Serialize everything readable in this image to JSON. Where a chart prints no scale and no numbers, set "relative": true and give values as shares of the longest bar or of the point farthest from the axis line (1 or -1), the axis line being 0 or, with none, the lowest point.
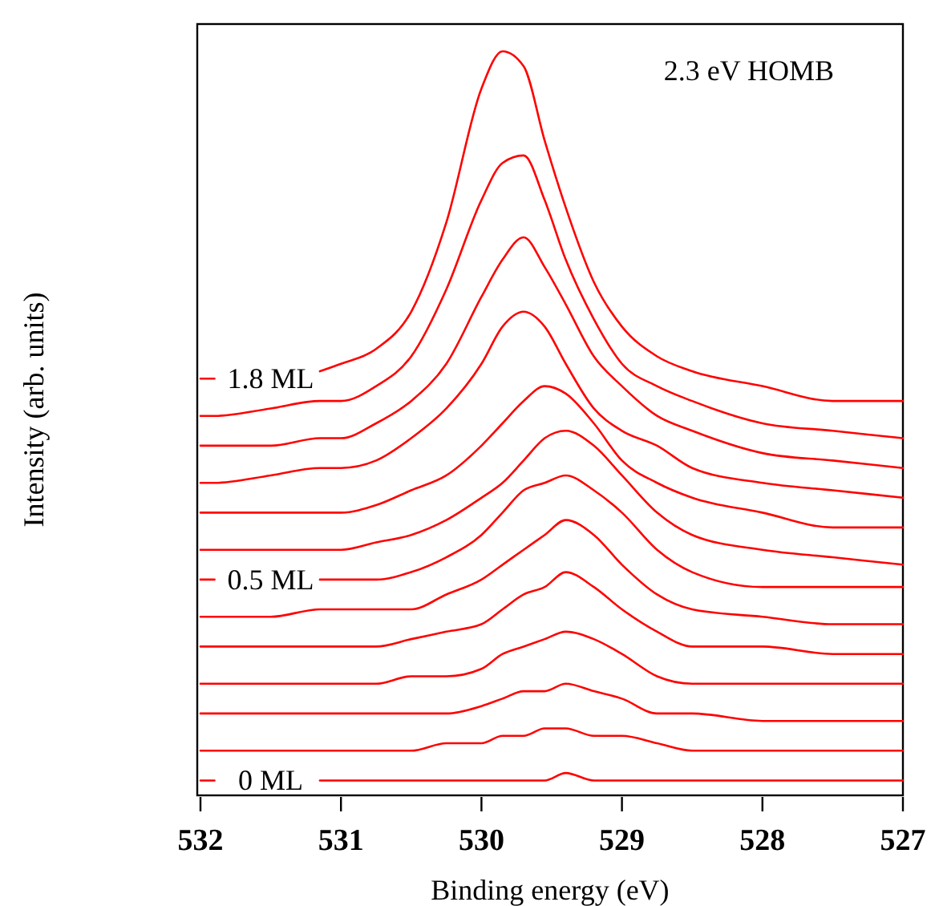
{
  "chart_data": {
    "type": "line",
    "relative": true,
    "xlabel": "Binding energy (eV)",
    "ylabel": "Intensity (arb. units)",
    "annotations": [
      "2.3 eV HOMB"
    ],
    "x": [
      532,
      531.9,
      531.5,
      531.15,
      531,
      530.75,
      530.5,
      530.25,
      530,
      529.85,
      529.7,
      529.55,
      529.4,
      529.2,
      529,
      528.75,
      528.5,
      528,
      527.5,
      527
    ],
    "xlim": [
      532,
      527
    ],
    "xticks": [
      532,
      531,
      530,
      529,
      528,
      527
    ],
    "marker": "none",
    "line_style": "solid",
    "series": [
      {
        "name": "0 ML",
        "color": "#ff0000",
        "values": [
          0.02,
          0.02,
          null,
          0.02,
          0.02,
          0.02,
          0.02,
          0.02,
          0.02,
          0.02,
          0.02,
          0.02,
          0.03,
          0.02,
          0.02,
          0.02,
          0.02,
          0.02,
          0.02,
          0.02
        ]
      },
      {
        "color": "#ff0000",
        "values": [
          0.06,
          0.06,
          0.06,
          0.06,
          0.06,
          0.06,
          0.06,
          0.07,
          0.07,
          0.08,
          0.08,
          0.09,
          0.09,
          0.08,
          0.08,
          0.07,
          0.06,
          0.06,
          0.06,
          0.06
        ]
      },
      {
        "color": "#ff0000",
        "values": [
          0.11,
          0.11,
          0.11,
          0.11,
          0.11,
          0.11,
          0.11,
          0.11,
          0.12,
          0.13,
          0.14,
          0.14,
          0.15,
          0.14,
          0.13,
          0.11,
          0.11,
          0.1,
          0.1,
          0.1
        ]
      },
      {
        "color": "#ff0000",
        "values": [
          0.15,
          0.15,
          0.15,
          0.15,
          0.15,
          0.15,
          0.16,
          0.16,
          0.17,
          0.19,
          0.2,
          0.21,
          0.22,
          0.21,
          0.19,
          0.16,
          0.15,
          0.15,
          0.15,
          0.15
        ]
      },
      {
        "color": "#ff0000",
        "values": [
          0.2,
          0.2,
          0.2,
          0.2,
          0.2,
          0.2,
          0.21,
          0.22,
          0.23,
          0.25,
          0.27,
          0.28,
          0.3,
          0.28,
          0.25,
          0.22,
          0.2,
          0.2,
          0.19,
          0.19
        ]
      },
      {
        "color": "#ff0000",
        "values": [
          0.24,
          0.24,
          0.24,
          0.25,
          0.25,
          0.25,
          0.25,
          0.27,
          0.29,
          0.31,
          0.33,
          0.35,
          0.37,
          0.35,
          0.31,
          0.27,
          0.25,
          0.24,
          0.23,
          0.23
        ]
      },
      {
        "name": "0.5 ML",
        "color": "#ff0000",
        "values": [
          0.29,
          0.29,
          null,
          0.29,
          0.29,
          0.29,
          0.3,
          0.32,
          0.35,
          0.38,
          0.41,
          0.42,
          0.43,
          0.41,
          0.38,
          0.33,
          0.3,
          0.28,
          0.28,
          0.28
        ]
      },
      {
        "color": "#ff0000",
        "values": [
          0.33,
          0.33,
          0.33,
          0.33,
          0.33,
          0.34,
          0.35,
          0.37,
          0.4,
          0.42,
          0.45,
          0.48,
          0.49,
          0.47,
          0.43,
          0.38,
          0.35,
          0.33,
          0.32,
          0.31
        ]
      },
      {
        "color": "#ff0000",
        "values": [
          0.38,
          0.38,
          0.38,
          0.38,
          0.38,
          0.39,
          0.41,
          0.43,
          0.47,
          0.5,
          0.53,
          0.55,
          0.54,
          0.5,
          0.45,
          0.42,
          0.4,
          0.38,
          0.36,
          0.36
        ]
      },
      {
        "color": "#ff0000",
        "values": [
          0.42,
          0.42,
          0.43,
          0.44,
          0.44,
          0.45,
          0.48,
          0.52,
          0.58,
          0.63,
          0.65,
          0.63,
          0.58,
          0.52,
          0.49,
          0.47,
          0.44,
          0.42,
          0.41,
          0.4
        ]
      },
      {
        "color": "#ff0000",
        "values": [
          0.47,
          0.47,
          0.47,
          0.48,
          0.48,
          0.5,
          0.53,
          0.58,
          0.67,
          0.72,
          0.75,
          0.71,
          0.66,
          0.59,
          0.55,
          0.51,
          0.49,
          0.46,
          0.45,
          0.44
        ]
      },
      {
        "color": "#ff0000",
        "values": [
          0.51,
          0.51,
          0.52,
          0.53,
          0.53,
          0.55,
          0.59,
          0.68,
          0.8,
          0.85,
          0.86,
          0.8,
          0.72,
          0.64,
          0.58,
          0.55,
          0.53,
          0.5,
          0.49,
          0.48
        ]
      },
      {
        "name": "1.8 ML",
        "color": "#ff0000",
        "values": [
          0.56,
          0.56,
          null,
          0.57,
          0.58,
          0.6,
          0.65,
          0.77,
          0.95,
          1,
          0.98,
          0.88,
          0.79,
          0.69,
          0.63,
          0.59,
          0.57,
          0.55,
          0.53,
          0.53
        ]
      }
    ]
  }
}
